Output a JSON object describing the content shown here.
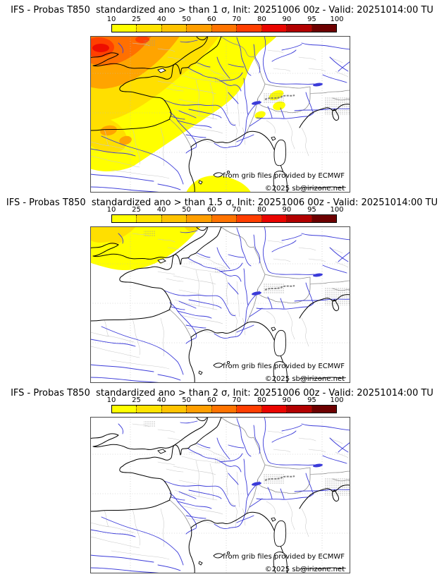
{
  "colorbar": {
    "ticks": [
      "10",
      "25",
      "40",
      "50",
      "60",
      "70",
      "80",
      "90",
      "95",
      "100"
    ],
    "segment_colors": [
      "#ffff00",
      "#ffe300",
      "#ffc300",
      "#ff9e00",
      "#ff7300",
      "#ff3e00",
      "#ea0500",
      "#b20000",
      "#6d0000"
    ]
  },
  "panels": [
    {
      "title": "IFS - Probas T850  standardized ano > than 1 σ, Init: 20251006 00z - Valid: 20251014:00 TU",
      "credit": "from grib files provided by ECMWF",
      "copyright": "©2025 sb@irizone.net"
    },
    {
      "title": "IFS - Probas T850  standardized ano > than 1.5 σ, Init: 20251006 00z - Valid: 20251014:00 TU",
      "credit": "from grib files provided by ECMWF",
      "copyright": "©2025 sb@irizone.net"
    },
    {
      "title": "IFS - Probas T850  standardized ano > than 2 σ, Init: 20251006 00z - Valid: 20251014:00 TU",
      "credit": "from grib files provided by ECMWF",
      "copyright": "©2025 sb@irizone.net"
    }
  ],
  "map_colors": {
    "coastline": "#000000",
    "rivers": "#3b3bd9",
    "country_borders": "#8f8f8f",
    "region_borders": "#c9c9c9",
    "frame": "#4d4d4d"
  }
}
